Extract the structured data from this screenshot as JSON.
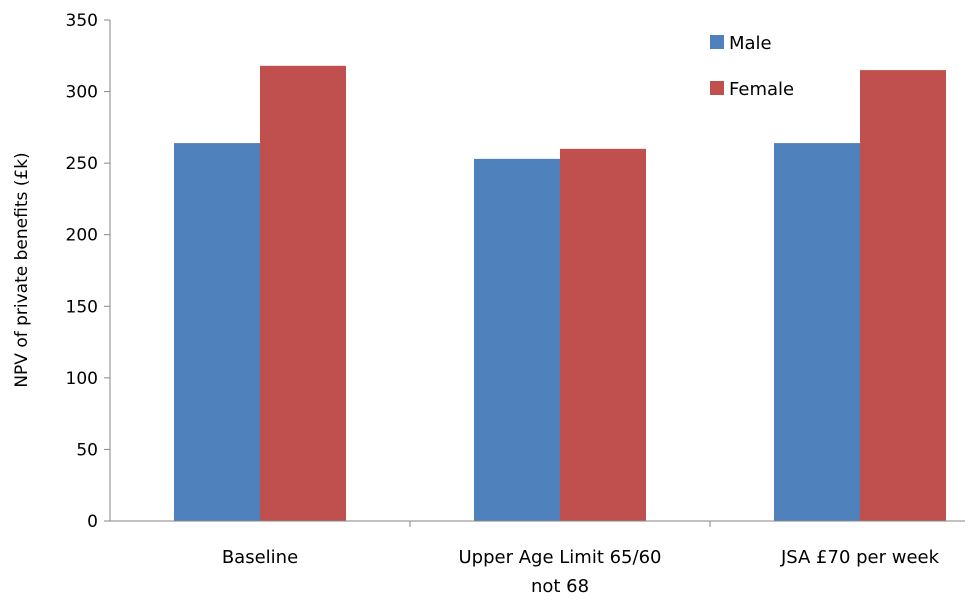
{
  "chart_data": {
    "type": "bar",
    "title": "",
    "xlabel": "",
    "ylabel": "NPV of private benefits (£k)",
    "ylim": [
      0,
      350
    ],
    "yticks": [
      0,
      50,
      100,
      150,
      200,
      250,
      300,
      350
    ],
    "grid": false,
    "legend_position": "top-right",
    "categories": [
      [
        "Baseline"
      ],
      [
        "Upper Age Limit 65/60",
        "not 68"
      ],
      [
        "JSA £70 per week"
      ]
    ],
    "series": [
      {
        "name": "Male",
        "color": "#4F81BD",
        "values": [
          264,
          253,
          264
        ]
      },
      {
        "name": "Female",
        "color": "#C0504D",
        "values": [
          318,
          260,
          315
        ]
      }
    ]
  }
}
